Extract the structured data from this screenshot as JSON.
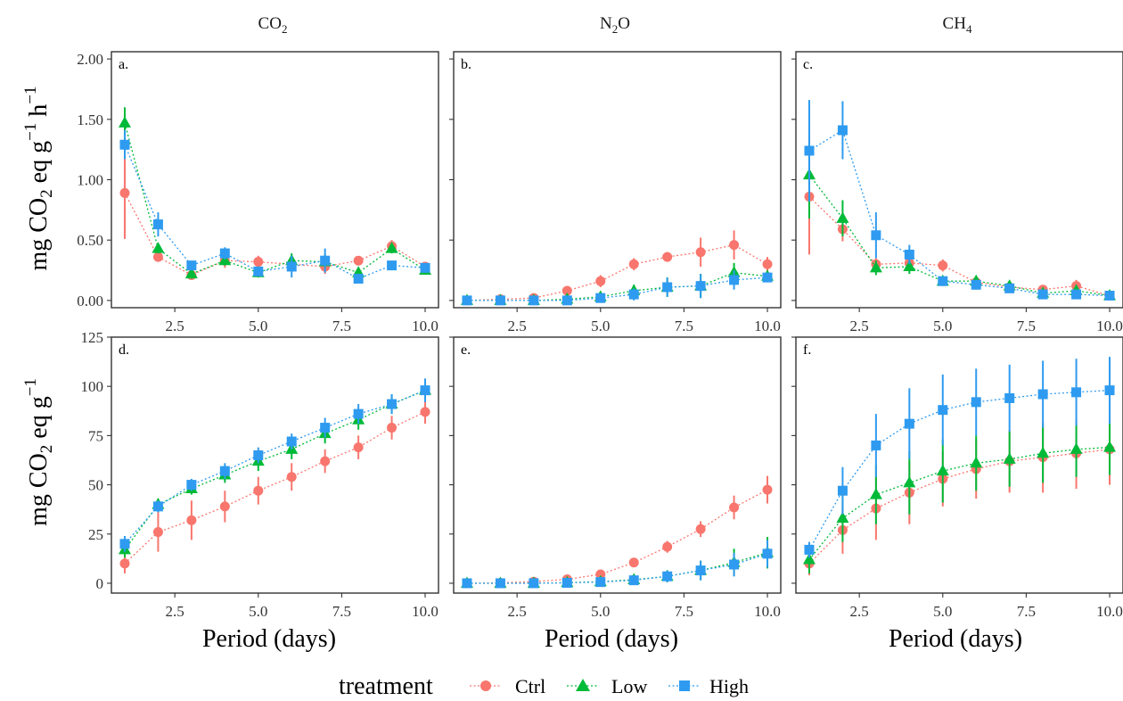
{
  "colors": {
    "Ctrl": "#F8766D",
    "Low": "#00BA38",
    "High": "#2E9BF0"
  },
  "legend": {
    "title": "treatment",
    "entries": [
      {
        "name": "Ctrl",
        "marker": "circle"
      },
      {
        "name": "Low",
        "marker": "triangle"
      },
      {
        "name": "High",
        "marker": "square"
      }
    ],
    "placement": "bottom"
  },
  "column_titles": [
    {
      "main": "CO",
      "sub": "2"
    },
    {
      "main": "N",
      "sub": "2",
      "rest": "O"
    },
    {
      "main": "CH",
      "sub": "4"
    }
  ],
  "row_ylabels": [
    {
      "parts": [
        "mg CO",
        "2",
        " eq g",
        "−1",
        " h",
        "−1"
      ]
    },
    {
      "parts": [
        "mg CO",
        "2",
        " eq g",
        "−1"
      ]
    }
  ],
  "xlabel": "Period (days)",
  "chart_data": [
    {
      "type": "line",
      "panel": "a.",
      "gas": "CO2",
      "row": 0,
      "xlim": [
        0.6,
        10.4
      ],
      "ylim": [
        -0.06,
        2.06
      ],
      "xticks": [
        2.5,
        5.0,
        7.5,
        10.0
      ],
      "xtick_labels": [
        "2.5",
        "5.0",
        "7.5",
        "10.0"
      ],
      "yticks": [
        0,
        0.5,
        1.0,
        1.5,
        2.0
      ],
      "ytick_labels": [
        "0.00",
        "0.50",
        "1.00",
        "1.50",
        "2.00"
      ],
      "x": [
        1,
        2,
        3,
        4,
        5,
        6,
        7,
        8,
        9,
        10
      ],
      "series": [
        {
          "name": "Ctrl",
          "values": [
            0.89,
            0.36,
            0.21,
            0.33,
            0.32,
            0.3,
            0.28,
            0.33,
            0.45,
            0.28
          ],
          "errors": [
            0.38,
            0.03,
            0.03,
            0.06,
            0.05,
            0.05,
            0.06,
            0.03,
            0.05,
            0.03
          ]
        },
        {
          "name": "Low",
          "values": [
            1.47,
            0.43,
            0.22,
            0.33,
            0.23,
            0.33,
            0.32,
            0.23,
            0.43,
            0.25
          ],
          "errors": [
            0.13,
            0.04,
            0.04,
            0.04,
            0.04,
            0.06,
            0.06,
            0.04,
            0.04,
            0.03
          ]
        },
        {
          "name": "High",
          "values": [
            1.29,
            0.63,
            0.29,
            0.39,
            0.24,
            0.28,
            0.33,
            0.18,
            0.29,
            0.27
          ],
          "errors": [
            0.12,
            0.1,
            0.03,
            0.05,
            0.04,
            0.09,
            0.1,
            0.04,
            0.03,
            0.04
          ]
        }
      ]
    },
    {
      "type": "line",
      "panel": "b.",
      "gas": "N2O",
      "row": 0,
      "xlim": [
        0.6,
        10.4
      ],
      "ylim": [
        -0.06,
        2.06
      ],
      "xticks": [
        2.5,
        5.0,
        7.5,
        10.0
      ],
      "xtick_labels": [
        "2.5",
        "5.0",
        "7.5",
        "10.0"
      ],
      "yticks": [
        0,
        0.5,
        1.0,
        1.5,
        2.0
      ],
      "ytick_labels": [],
      "x": [
        1,
        2,
        3,
        4,
        5,
        6,
        7,
        8,
        9,
        10
      ],
      "series": [
        {
          "name": "Ctrl",
          "values": [
            0.0,
            0.01,
            0.02,
            0.08,
            0.16,
            0.3,
            0.36,
            0.4,
            0.46,
            0.3
          ],
          "errors": [
            0.005,
            0.01,
            0.01,
            0.02,
            0.05,
            0.05,
            0.04,
            0.12,
            0.12,
            0.06
          ]
        },
        {
          "name": "Low",
          "values": [
            0.0,
            0.0,
            0.0,
            0.01,
            0.03,
            0.08,
            0.11,
            0.12,
            0.23,
            0.2
          ],
          "errors": [
            0.005,
            0.005,
            0.005,
            0.01,
            0.02,
            0.05,
            0.08,
            0.1,
            0.08,
            0.03
          ]
        },
        {
          "name": "High",
          "values": [
            0.0,
            0.0,
            0.0,
            0.0,
            0.02,
            0.05,
            0.11,
            0.12,
            0.17,
            0.19
          ],
          "errors": [
            0.005,
            0.005,
            0.005,
            0.01,
            0.02,
            0.05,
            0.08,
            0.1,
            0.08,
            0.04
          ]
        }
      ]
    },
    {
      "type": "line",
      "panel": "c.",
      "gas": "CH4",
      "row": 0,
      "xlim": [
        0.6,
        10.4
      ],
      "ylim": [
        -0.06,
        2.06
      ],
      "xticks": [
        2.5,
        5.0,
        7.5,
        10.0
      ],
      "xtick_labels": [
        "2.5",
        "5.0",
        "7.5",
        "10.0"
      ],
      "yticks": [
        0,
        0.5,
        1.0,
        1.5,
        2.0
      ],
      "ytick_labels": [],
      "x": [
        1,
        2,
        3,
        4,
        5,
        6,
        7,
        8,
        9,
        10
      ],
      "series": [
        {
          "name": "Ctrl",
          "values": [
            0.86,
            0.59,
            0.3,
            0.31,
            0.29,
            0.15,
            0.11,
            0.09,
            0.12,
            0.04
          ],
          "errors": [
            0.48,
            0.1,
            0.05,
            0.05,
            0.05,
            0.05,
            0.03,
            0.03,
            0.05,
            0.02
          ]
        },
        {
          "name": "Low",
          "values": [
            1.04,
            0.68,
            0.27,
            0.28,
            0.16,
            0.16,
            0.12,
            0.06,
            0.08,
            0.04
          ],
          "errors": [
            0.36,
            0.15,
            0.06,
            0.06,
            0.03,
            0.04,
            0.03,
            0.02,
            0.03,
            0.02
          ]
        },
        {
          "name": "High",
          "values": [
            1.24,
            1.41,
            0.54,
            0.38,
            0.16,
            0.13,
            0.1,
            0.05,
            0.05,
            0.04
          ],
          "errors": [
            0.42,
            0.24,
            0.19,
            0.08,
            0.04,
            0.04,
            0.03,
            0.02,
            0.02,
            0.02
          ]
        }
      ]
    },
    {
      "type": "line",
      "panel": "d.",
      "gas": "CO2",
      "row": 1,
      "xlim": [
        0.6,
        10.4
      ],
      "ylim": [
        -5,
        125
      ],
      "xticks": [
        2.5,
        5.0,
        7.5,
        10.0
      ],
      "xtick_labels": [
        "2.5",
        "5.0",
        "7.5",
        "10.0"
      ],
      "yticks": [
        0,
        25,
        50,
        75,
        100,
        125
      ],
      "ytick_labels": [
        "0",
        "25",
        "50",
        "75",
        "100",
        "125"
      ],
      "x": [
        1,
        2,
        3,
        4,
        5,
        6,
        7,
        8,
        9,
        10
      ],
      "series": [
        {
          "name": "Ctrl",
          "values": [
            10,
            26,
            32,
            39,
            47,
            54,
            62,
            69,
            79,
            87
          ],
          "errors": [
            5,
            10,
            10,
            8,
            7,
            7,
            6,
            6,
            6,
            6
          ]
        },
        {
          "name": "Low",
          "values": [
            17,
            40,
            48,
            55,
            62,
            68,
            76,
            83,
            91,
            98
          ],
          "errors": [
            4,
            3,
            3,
            4,
            5,
            5,
            5,
            5,
            5,
            5
          ]
        },
        {
          "name": "High",
          "values": [
            20,
            39,
            50,
            57,
            65,
            72,
            79,
            86,
            91,
            98
          ],
          "errors": [
            4,
            3,
            3,
            4,
            4,
            4,
            5,
            5,
            5,
            6
          ]
        }
      ]
    },
    {
      "type": "line",
      "panel": "e.",
      "gas": "N2O",
      "row": 1,
      "xlim": [
        0.6,
        10.4
      ],
      "ylim": [
        -5,
        125
      ],
      "xticks": [
        2.5,
        5.0,
        7.5,
        10.0
      ],
      "xtick_labels": [
        "2.5",
        "5.0",
        "7.5",
        "10.0"
      ],
      "yticks": [
        0,
        25,
        50,
        75,
        100,
        125
      ],
      "ytick_labels": [],
      "x": [
        1,
        2,
        3,
        4,
        5,
        6,
        7,
        8,
        9,
        10
      ],
      "series": [
        {
          "name": "Ctrl",
          "values": [
            0,
            0.2,
            0.8,
            2.0,
            4.5,
            10.5,
            18.5,
            27.5,
            38.5,
            47.5
          ],
          "errors": [
            0.3,
            0.4,
            0.6,
            1.0,
            1.5,
            2,
            3,
            4,
            6,
            7
          ]
        },
        {
          "name": "Low",
          "values": [
            0,
            0,
            0,
            0.3,
            0.8,
            1.8,
            3.5,
            6.5,
            10.5,
            15.5
          ],
          "errors": [
            0.3,
            0.3,
            0.4,
            0.5,
            0.7,
            1.5,
            3,
            5,
            7,
            8
          ]
        },
        {
          "name": "High",
          "values": [
            0,
            0,
            0,
            0.2,
            0.6,
            1.5,
            3.5,
            6.5,
            9.5,
            15
          ],
          "errors": [
            0.3,
            0.3,
            0.4,
            0.5,
            0.7,
            1.5,
            3,
            5,
            6,
            7
          ]
        }
      ]
    },
    {
      "type": "line",
      "panel": "f.",
      "gas": "CH4",
      "row": 1,
      "xlim": [
        0.6,
        10.4
      ],
      "ylim": [
        -5,
        125
      ],
      "xticks": [
        2.5,
        5.0,
        7.5,
        10.0
      ],
      "xtick_labels": [
        "2.5",
        "5.0",
        "7.5",
        "10.0"
      ],
      "yticks": [
        0,
        25,
        50,
        75,
        100,
        125
      ],
      "ytick_labels": [],
      "x": [
        1,
        2,
        3,
        4,
        5,
        6,
        7,
        8,
        9,
        10
      ],
      "series": [
        {
          "name": "Ctrl",
          "values": [
            10,
            27,
            38,
            46,
            53,
            58,
            62,
            64,
            66,
            68
          ],
          "errors": [
            6,
            12,
            16,
            16,
            14,
            15,
            16,
            18,
            18,
            18
          ]
        },
        {
          "name": "Low",
          "values": [
            12,
            33,
            45,
            51,
            57,
            61,
            63,
            66,
            68,
            69
          ],
          "errors": [
            7,
            12,
            15,
            16,
            16,
            14,
            14,
            15,
            14,
            14
          ]
        },
        {
          "name": "High",
          "values": [
            17,
            47,
            70,
            81,
            88,
            92,
            94,
            96,
            97,
            98
          ],
          "errors": [
            4,
            12,
            16,
            18,
            18,
            17,
            17,
            17,
            17,
            17
          ]
        }
      ]
    }
  ]
}
